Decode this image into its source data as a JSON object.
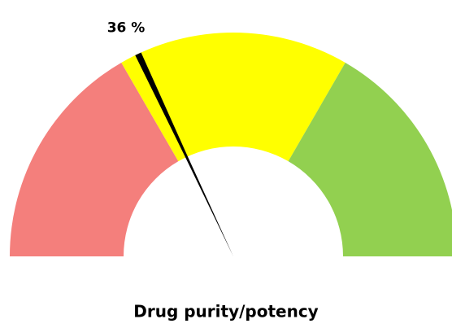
{
  "chart_data": {
    "type": "gauge",
    "title": "Drug purity/potency",
    "value": 36,
    "value_label": "36 %",
    "ylim": [
      0,
      100
    ],
    "bands": [
      {
        "from": 0,
        "to": 33.3,
        "color": "#f47f7c"
      },
      {
        "from": 33.3,
        "to": 66.7,
        "color": "#ffff00"
      },
      {
        "from": 66.7,
        "to": 100,
        "color": "#92d050"
      }
    ],
    "needle_color": "#000000"
  }
}
